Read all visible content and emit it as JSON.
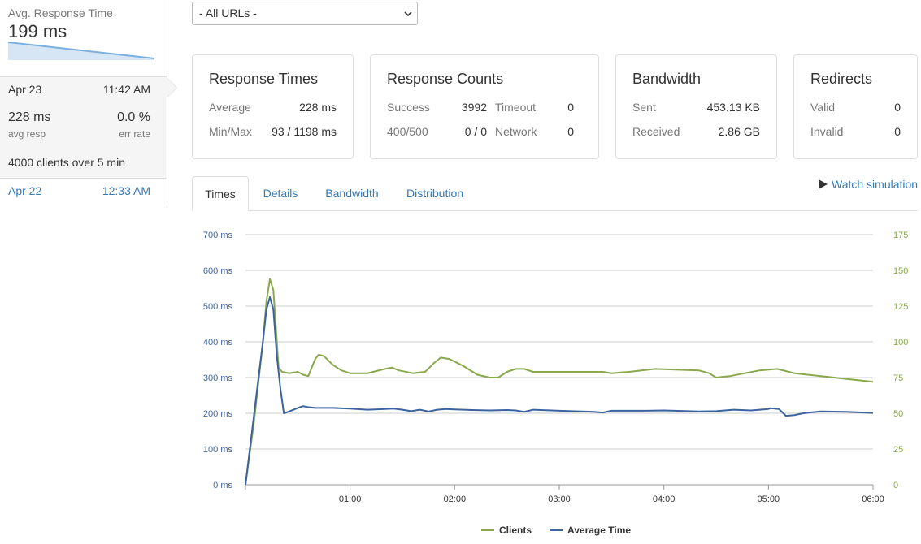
{
  "sidebar": {
    "avg_title": "Avg. Response Time",
    "avg_value": "199 ms",
    "run1": {
      "date": "Apr 23",
      "time": "11:42 AM",
      "resp": "228 ms",
      "resp_label": "avg resp",
      "err": "0.0 %",
      "err_label": "err rate",
      "clients_num": "4000",
      "clients_mid": " clients over ",
      "clients_min": "5",
      "clients_end": " min"
    },
    "run2": {
      "date": "Apr 22",
      "time": "12:33 AM"
    }
  },
  "url_filter": {
    "selected": "- All URLs -"
  },
  "cards": {
    "response_times": {
      "title": "Response Times",
      "average_label": "Average",
      "average": "228 ms",
      "minmax_label": "Min/Max",
      "minmax": "93 / 1198 ms"
    },
    "response_counts": {
      "title": "Response Counts",
      "success_label": "Success",
      "success": "3992",
      "timeout_label": "Timeout",
      "timeout": "0",
      "err_label": "400/500",
      "err": "0 / 0",
      "network_label": "Network",
      "network": "0"
    },
    "bandwidth": {
      "title": "Bandwidth",
      "sent_label": "Sent",
      "sent": "453.13 KB",
      "received_label": "Received",
      "received": "2.86 GB"
    },
    "redirects": {
      "title": "Redirects",
      "valid_label": "Valid",
      "valid": "0",
      "invalid_label": "Invalid",
      "invalid": "0"
    }
  },
  "tabs": [
    "Times",
    "Details",
    "Bandwidth",
    "Distribution"
  ],
  "watch_label": "Watch simulation",
  "colors": {
    "clients": "#8aa84d",
    "average_time": "#3b63a0",
    "link": "#337ab7"
  },
  "chart_data": {
    "type": "line",
    "x_ticks": [
      "01:00",
      "02:00",
      "03:00",
      "04:00",
      "05:00",
      "06:00"
    ],
    "xlim_seconds": [
      0,
      360
    ],
    "y_left": {
      "ticks": [
        "0 ms",
        "100 ms",
        "200 ms",
        "300 ms",
        "400 ms",
        "500 ms",
        "600 ms",
        "700 ms"
      ],
      "ylim": [
        0,
        700
      ],
      "unit": "ms"
    },
    "y_right": {
      "ticks": [
        "0",
        "25",
        "50",
        "75",
        "100",
        "125",
        "150",
        "175"
      ],
      "ylim": [
        0,
        175
      ]
    },
    "grid": true,
    "legend_position": "bottom-center",
    "series": [
      {
        "name": "Clients",
        "axis": "right",
        "points": [
          [
            0,
            0
          ],
          [
            5,
            45
          ],
          [
            10,
            100
          ],
          [
            12,
            128
          ],
          [
            14,
            144
          ],
          [
            16,
            136
          ],
          [
            18,
            100
          ],
          [
            19,
            82
          ],
          [
            21,
            79
          ],
          [
            25,
            78
          ],
          [
            30,
            79
          ],
          [
            33,
            77
          ],
          [
            36,
            76
          ],
          [
            40,
            88
          ],
          [
            42,
            91
          ],
          [
            45,
            90
          ],
          [
            50,
            84
          ],
          [
            55,
            80
          ],
          [
            60,
            78
          ],
          [
            70,
            78
          ],
          [
            80,
            81
          ],
          [
            84,
            82
          ],
          [
            88,
            80
          ],
          [
            96,
            78
          ],
          [
            103,
            79
          ],
          [
            108,
            85
          ],
          [
            112,
            89
          ],
          [
            117,
            88
          ],
          [
            125,
            83
          ],
          [
            133,
            77
          ],
          [
            140,
            75
          ],
          [
            145,
            75
          ],
          [
            150,
            79
          ],
          [
            155,
            81
          ],
          [
            160,
            81
          ],
          [
            165,
            79
          ],
          [
            180,
            79
          ],
          [
            200,
            79
          ],
          [
            205,
            79
          ],
          [
            210,
            78
          ],
          [
            220,
            79
          ],
          [
            235,
            81
          ],
          [
            260,
            80
          ],
          [
            266,
            78
          ],
          [
            270,
            75
          ],
          [
            278,
            76
          ],
          [
            295,
            80
          ],
          [
            305,
            81
          ],
          [
            315,
            78
          ],
          [
            330,
            76
          ],
          [
            345,
            74
          ],
          [
            360,
            72
          ]
        ]
      },
      {
        "name": "Average Time",
        "axis": "left",
        "points": [
          [
            0,
            0
          ],
          [
            5,
            200
          ],
          [
            10,
            400
          ],
          [
            12,
            490
          ],
          [
            14,
            525
          ],
          [
            16,
            490
          ],
          [
            18,
            360
          ],
          [
            20,
            270
          ],
          [
            22,
            200
          ],
          [
            25,
            205
          ],
          [
            30,
            215
          ],
          [
            33,
            220
          ],
          [
            36,
            217
          ],
          [
            40,
            215
          ],
          [
            45,
            215
          ],
          [
            50,
            215
          ],
          [
            60,
            213
          ],
          [
            70,
            210
          ],
          [
            80,
            212
          ],
          [
            85,
            213
          ],
          [
            90,
            210
          ],
          [
            95,
            206
          ],
          [
            100,
            210
          ],
          [
            105,
            205
          ],
          [
            110,
            210
          ],
          [
            115,
            212
          ],
          [
            120,
            211
          ],
          [
            125,
            210
          ],
          [
            130,
            209
          ],
          [
            140,
            208
          ],
          [
            150,
            209
          ],
          [
            155,
            208
          ],
          [
            160,
            204
          ],
          [
            165,
            210
          ],
          [
            180,
            207
          ],
          [
            200,
            204
          ],
          [
            205,
            202
          ],
          [
            210,
            207
          ],
          [
            230,
            207
          ],
          [
            240,
            208
          ],
          [
            260,
            205
          ],
          [
            270,
            206
          ],
          [
            275,
            208
          ],
          [
            280,
            210
          ],
          [
            290,
            208
          ],
          [
            300,
            212
          ],
          [
            301,
            214
          ],
          [
            306,
            212
          ],
          [
            310,
            193
          ],
          [
            315,
            195
          ],
          [
            320,
            200
          ],
          [
            325,
            203
          ],
          [
            330,
            205
          ],
          [
            345,
            204
          ],
          [
            360,
            201
          ]
        ]
      }
    ]
  }
}
